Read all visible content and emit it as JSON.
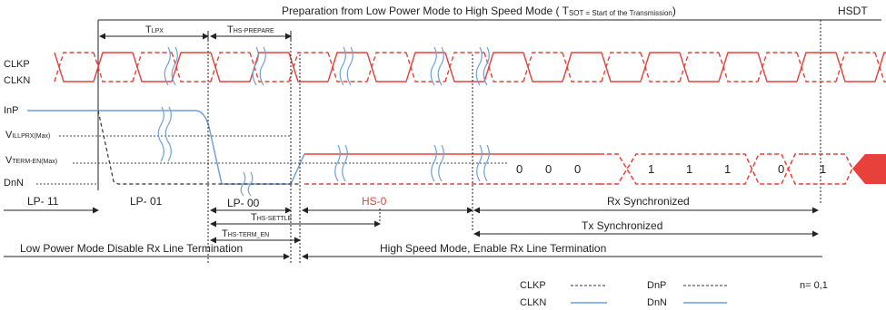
{
  "header": {
    "preparation_title": "Preparation from Low Power Mode to High Speed Mode ( T",
    "preparation_title_sub": "SOT = Start of the Transmission",
    "preparation_title_end": ")",
    "hsdt": "HSDT"
  },
  "timing_labels": {
    "tlpx": "T",
    "tlpx_sub": "LPX",
    "ths_prepare": "T",
    "ths_prepare_sub": "HS-PREPARE",
    "ths_settle": "T",
    "ths_settle_sub": "HS-SETTLE",
    "ths_term_en": "T",
    "ths_term_en_sub": "HS-TERM_EN"
  },
  "signal_labels": {
    "clkp": "CLKP",
    "clkn": "CLKN",
    "inp": "InP",
    "vilprx": "V",
    "vilprx_sub": "ILLPRX(Max)",
    "vterm": "V",
    "vterm_sub": "TERM-EN(Max)",
    "dnn": "DnN"
  },
  "state_labels": {
    "lp11": "LP- 11",
    "lp01": "LP- 01",
    "lp00": "LP- 00",
    "hs0": "HS-0",
    "rx_sync": "Rx Synchronized",
    "tx_sync": "Tx Synchronized"
  },
  "bits": [
    "0",
    "0",
    "0",
    "1",
    "1",
    "1",
    "0",
    "1"
  ],
  "modes": {
    "low_power": "Low Power Mode Disable Rx Line Termination",
    "high_speed": "High Speed Mode, Enable Rx Line Termination"
  },
  "legend": {
    "clkp": "CLKP",
    "clkn": "CLKN",
    "dnp": "DnP",
    "dnn": "DnN",
    "n_note": "n= 0,1"
  },
  "colors": {
    "clock": "#e8403a",
    "data_line": "#6fa0d8",
    "hs_data": "#e8403a",
    "text": "#222222"
  }
}
